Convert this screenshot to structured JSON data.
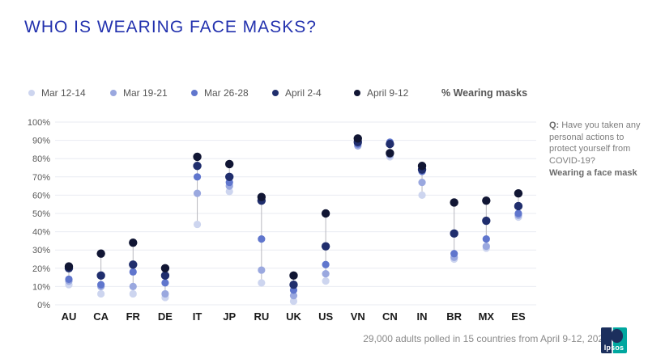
{
  "title": "WHO IS WEARING FACE MASKS?",
  "legend": {
    "series_label": "% Wearing masks"
  },
  "chart_data": {
    "type": "scatter",
    "subtype": "dot-plot-by-wave",
    "title": "WHO IS WEARING FACE MASKS?",
    "ylabel": "% Wearing masks",
    "xlabel": "",
    "ylim": [
      0,
      100
    ],
    "yticks": [
      0,
      10,
      20,
      30,
      40,
      50,
      60,
      70,
      80,
      90,
      100
    ],
    "ytick_suffix": "%",
    "grid": true,
    "legend_position": "top",
    "categories": [
      "AU",
      "CA",
      "FR",
      "DE",
      "IT",
      "JP",
      "RU",
      "UK",
      "US",
      "VN",
      "CN",
      "IN",
      "BR",
      "MX",
      "ES"
    ],
    "series": [
      {
        "name": "Mar 12-14",
        "color": "#cdd5ef",
        "values": [
          11,
          6,
          6,
          4,
          44,
          62,
          12,
          2,
          13,
          87,
          81,
          60,
          25,
          31,
          48
        ]
      },
      {
        "name": "Mar 19-21",
        "color": "#9aa8df",
        "values": [
          13,
          10,
          10,
          6,
          61,
          65,
          19,
          5,
          17,
          87,
          82,
          67,
          26,
          32,
          49
        ]
      },
      {
        "name": "Mar 26-28",
        "color": "#6076cd",
        "values": [
          14,
          11,
          18,
          12,
          70,
          67,
          36,
          8,
          22,
          88,
          89,
          73,
          28,
          36,
          50
        ]
      },
      {
        "name": "April 2-4",
        "color": "#202e6d",
        "values": [
          20,
          16,
          22,
          16,
          76,
          70,
          57,
          11,
          32,
          89,
          88,
          74,
          39,
          46,
          54
        ]
      },
      {
        "name": "April 9-12",
        "color": "#111634",
        "values": [
          21,
          28,
          34,
          20,
          81,
          77,
          59,
          16,
          50,
          91,
          83,
          76,
          56,
          57,
          61
        ]
      }
    ]
  },
  "annotation": {
    "q_label": "Q:",
    "q_text": "Have you taken any personal actions to protect yourself from COVID-19?",
    "q_bold": "Wearing a face mask"
  },
  "footer": {
    "note": "29,000 adults polled in 15 countries from April 9-12, 2020",
    "logo_text": "Ipsos"
  },
  "colors": {
    "title": "#2231ae",
    "logo_teal": "#00a79f",
    "logo_navy": "#1c2f5d"
  }
}
